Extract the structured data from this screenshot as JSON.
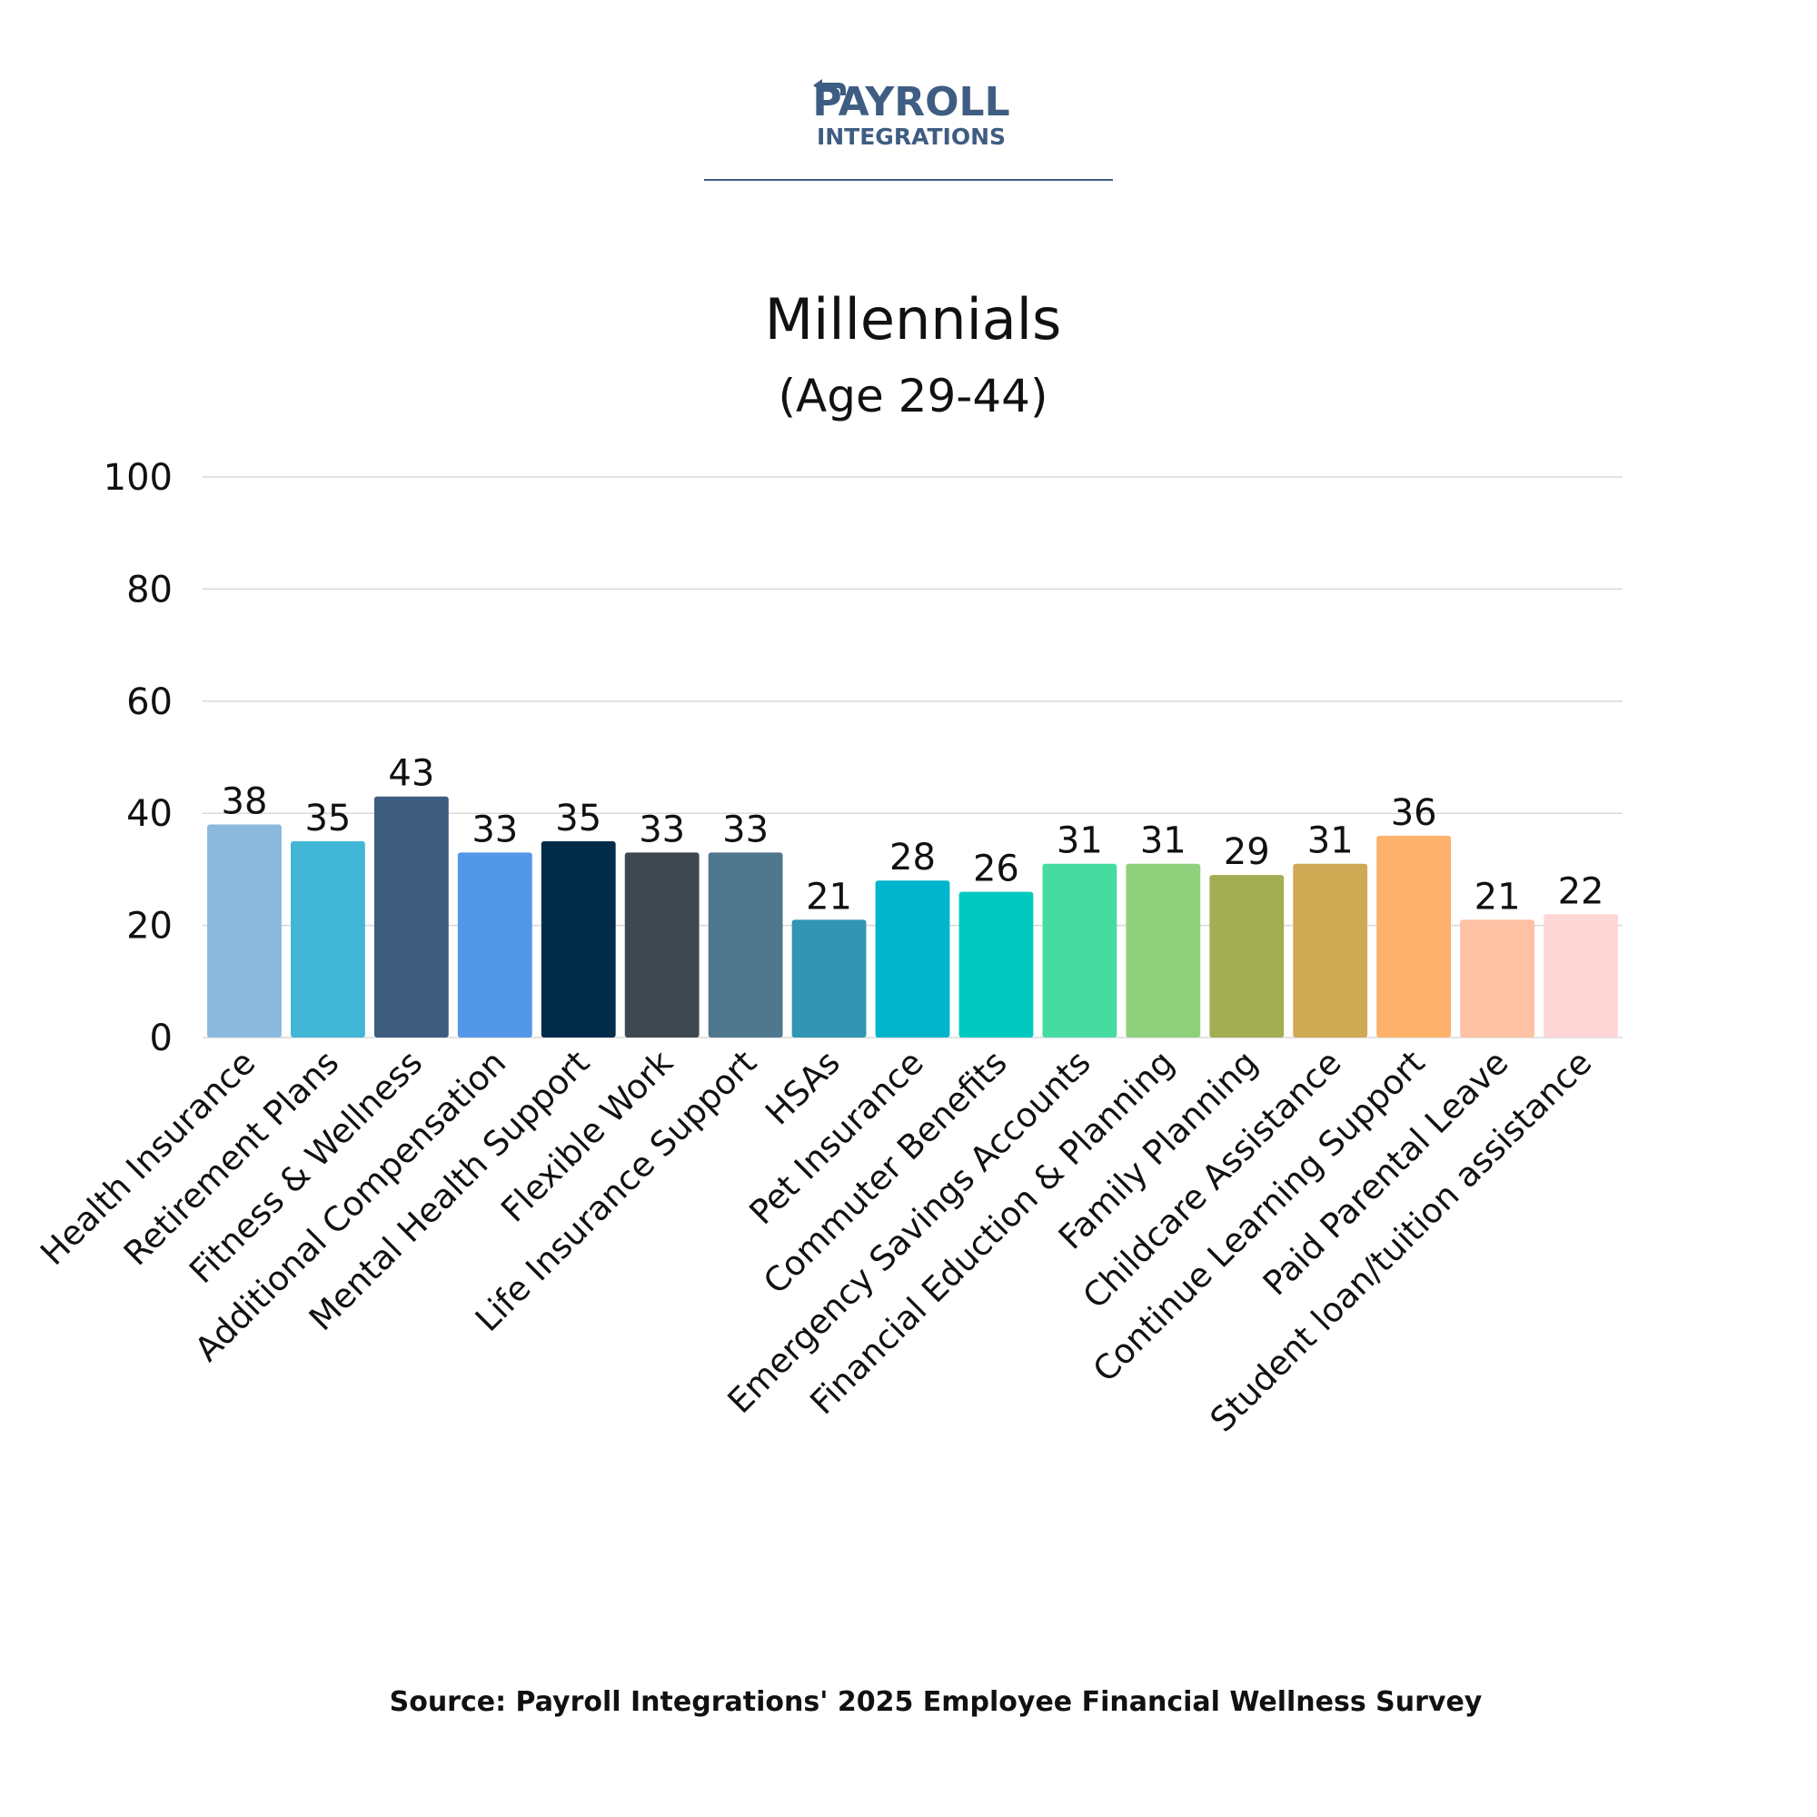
{
  "logo": {
    "line1": "PAYROLL",
    "line2": "INTEGRATIONS",
    "color": "#3f5d82"
  },
  "source": "Source: Payroll Integrations' 2025 Employee Financial Wellness Survey",
  "chart_data": {
    "type": "bar",
    "title": "Millennials",
    "subtitle": "(Age 29-44)",
    "xlabel": "",
    "ylabel": "",
    "ylim": [
      0,
      100
    ],
    "yticks": [
      0,
      20,
      40,
      60,
      80,
      100
    ],
    "grid": true,
    "legend": "none",
    "categories": [
      "Health Insurance",
      "Retirement Plans",
      "Fitness & Wellness",
      "Additional Compensation",
      "Mental Health Support",
      "Flexible Work",
      "Life Insurance Support",
      "HSAs",
      "Pet Insurance",
      "Commuter Benefits",
      "Emergency Savings Accounts",
      "Financial Eduction & Planning",
      "Family Planning",
      "Childcare Assistance",
      "Continue Learning Support",
      "Paid Parental Leave",
      "Student loan/tuition assistance"
    ],
    "values": [
      38,
      35,
      43,
      33,
      35,
      33,
      33,
      21,
      28,
      26,
      31,
      31,
      29,
      31,
      36,
      21,
      22
    ],
    "colors": [
      "#8bb9dd",
      "#42b6d6",
      "#3d5c7e",
      "#5297e8",
      "#032b4a",
      "#3e4851",
      "#4f778e",
      "#3195b3",
      "#01b5cc",
      "#02c9c0",
      "#46dba1",
      "#8ed07c",
      "#a3ad53",
      "#cfaa55",
      "#fdb16b",
      "#fec1a4",
      "#ffd6d6"
    ]
  }
}
